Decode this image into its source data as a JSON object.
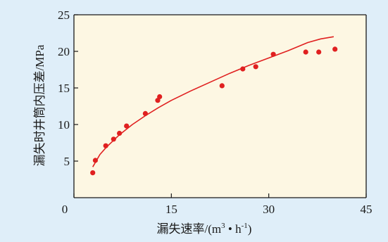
{
  "chart_data": {
    "type": "scatter",
    "xlabel": "漏失速率/(m³·h⁻¹)",
    "xlabel_parts": {
      "main": "漏失速率/(m",
      "sup1": "3",
      "dot": " • h",
      "sup2": "-1",
      "close": ")"
    },
    "ylabel": "漏失时井筒内压差/MPa",
    "xlim": [
      0,
      45
    ],
    "ylim": [
      0,
      25
    ],
    "x_ticks": [
      0,
      15,
      30,
      45
    ],
    "x_tick_labels": [
      "0",
      "15",
      "30",
      "45"
    ],
    "y_ticks": [
      5,
      10,
      15,
      20,
      25
    ],
    "y_tick_labels": [
      "5",
      "10",
      "15",
      "20",
      "25"
    ],
    "grid": false,
    "series": [
      {
        "kind": "points",
        "color": "#e02020",
        "points": [
          [
            2.9,
            3.4
          ],
          [
            3.3,
            5.1
          ],
          [
            4.9,
            7.1
          ],
          [
            6.1,
            8.0
          ],
          [
            7.0,
            8.8
          ],
          [
            8.1,
            9.8
          ],
          [
            11.0,
            11.5
          ],
          [
            12.9,
            13.3
          ],
          [
            13.2,
            13.8
          ],
          [
            22.8,
            15.3
          ],
          [
            26.0,
            17.6
          ],
          [
            28.0,
            17.9
          ],
          [
            30.7,
            19.6
          ],
          [
            35.7,
            19.9
          ],
          [
            37.7,
            19.9
          ],
          [
            40.2,
            20.3
          ]
        ]
      },
      {
        "kind": "fit-line",
        "color": "#e02020",
        "points": [
          [
            2.9,
            4.2
          ],
          [
            4,
            5.9
          ],
          [
            5,
            6.9
          ],
          [
            7,
            8.6
          ],
          [
            9,
            10.0
          ],
          [
            11,
            11.2
          ],
          [
            13,
            12.3
          ],
          [
            15,
            13.3
          ],
          [
            18,
            14.6
          ],
          [
            21,
            15.8
          ],
          [
            24,
            17.0
          ],
          [
            27,
            18.1
          ],
          [
            30,
            19.1
          ],
          [
            33,
            20.1
          ],
          [
            36,
            21.2
          ],
          [
            38,
            21.7
          ],
          [
            40,
            22.0
          ]
        ]
      }
    ]
  },
  "colors": {
    "background": "#dfeef9",
    "plot_area": "#fdf7e3",
    "accent": "#e02020",
    "axis": "#1a1a1a"
  }
}
